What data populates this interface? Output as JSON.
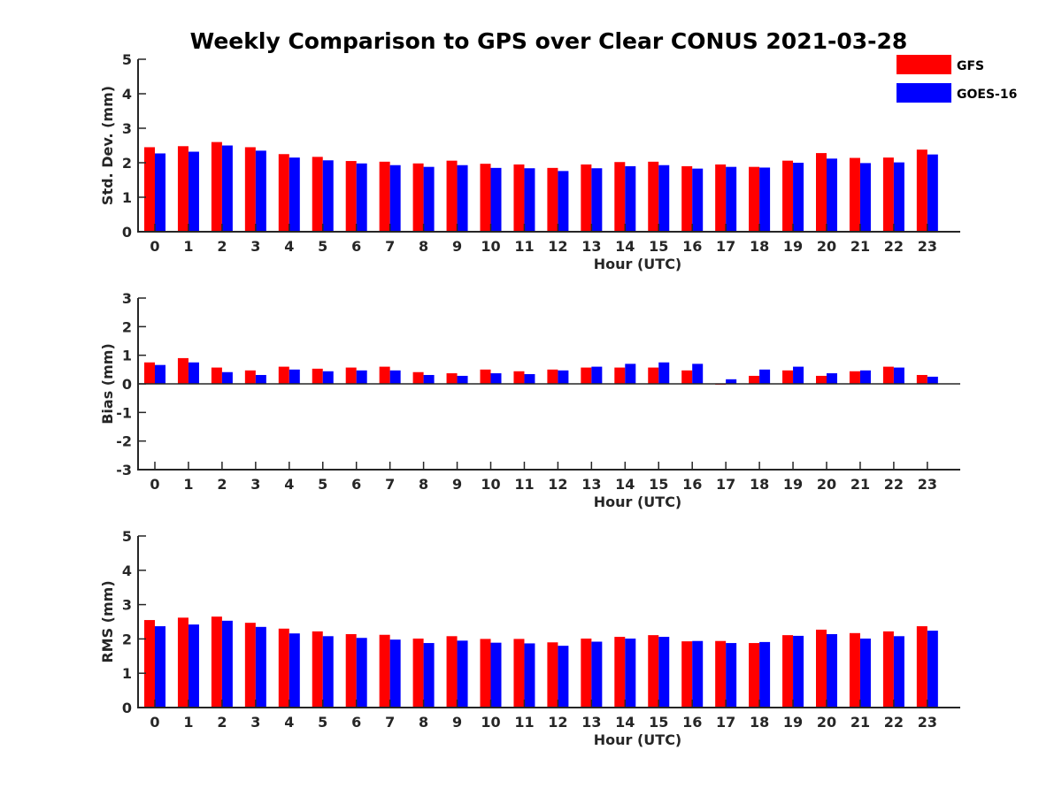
{
  "figure": {
    "title": "Weekly Comparison to GPS over Clear CONUS 2021-03-28"
  },
  "legend": {
    "placement": "top-right",
    "entries": [
      {
        "name": "GFS",
        "color": "#ff0000"
      },
      {
        "name": "GOES-16",
        "color": "#0000ff"
      }
    ]
  },
  "chart_data": [
    {
      "type": "bar",
      "xlabel": "Hour (UTC)",
      "ylabel": "Std. Dev. (mm)",
      "ylim": [
        0,
        5
      ],
      "yticks": [
        0,
        1,
        2,
        3,
        4,
        5
      ],
      "categories": [
        "0",
        "1",
        "2",
        "3",
        "4",
        "5",
        "6",
        "7",
        "8",
        "9",
        "10",
        "11",
        "12",
        "13",
        "14",
        "15",
        "16",
        "17",
        "18",
        "19",
        "20",
        "21",
        "22",
        "23"
      ],
      "series": [
        {
          "name": "GFS",
          "color": "#ff0000",
          "values": [
            2.45,
            2.48,
            2.6,
            2.45,
            2.25,
            2.17,
            2.05,
            2.03,
            1.98,
            2.06,
            1.97,
            1.95,
            1.85,
            1.95,
            2.02,
            2.03,
            1.9,
            1.95,
            1.88,
            2.06,
            2.28,
            2.14,
            2.15,
            2.38
          ]
        },
        {
          "name": "GOES-16",
          "color": "#0000ff",
          "values": [
            2.27,
            2.32,
            2.5,
            2.35,
            2.15,
            2.07,
            1.98,
            1.93,
            1.88,
            1.93,
            1.85,
            1.84,
            1.76,
            1.84,
            1.9,
            1.93,
            1.83,
            1.88,
            1.86,
            2.0,
            2.12,
            1.99,
            2.01,
            2.24
          ]
        }
      ]
    },
    {
      "type": "bar",
      "xlabel": "Hour (UTC)",
      "ylabel": "Bias (mm)",
      "ylim": [
        -3,
        3
      ],
      "yticks": [
        -3,
        -2,
        -1,
        0,
        1,
        2,
        3
      ],
      "categories": [
        "0",
        "1",
        "2",
        "3",
        "4",
        "5",
        "6",
        "7",
        "8",
        "9",
        "10",
        "11",
        "12",
        "13",
        "14",
        "15",
        "16",
        "17",
        "18",
        "19",
        "20",
        "21",
        "22",
        "23"
      ],
      "series": [
        {
          "name": "GFS",
          "color": "#ff0000",
          "values": [
            0.75,
            0.9,
            0.57,
            0.47,
            0.6,
            0.53,
            0.57,
            0.6,
            0.41,
            0.37,
            0.5,
            0.44,
            0.5,
            0.57,
            0.57,
            0.57,
            0.47,
            -0.03,
            0.28,
            0.47,
            0.28,
            0.44,
            0.6,
            0.31
          ]
        },
        {
          "name": "GOES-16",
          "color": "#0000ff",
          "values": [
            0.66,
            0.75,
            0.41,
            0.31,
            0.5,
            0.44,
            0.47,
            0.47,
            0.31,
            0.28,
            0.37,
            0.34,
            0.47,
            0.6,
            0.7,
            0.75,
            0.7,
            0.16,
            0.5,
            0.6,
            0.37,
            0.47,
            0.57,
            0.25
          ]
        }
      ]
    },
    {
      "type": "bar",
      "xlabel": "Hour (UTC)",
      "ylabel": "RMS (mm)",
      "ylim": [
        0,
        5
      ],
      "yticks": [
        0,
        1,
        2,
        3,
        4,
        5
      ],
      "categories": [
        "0",
        "1",
        "2",
        "3",
        "4",
        "5",
        "6",
        "7",
        "8",
        "9",
        "10",
        "11",
        "12",
        "13",
        "14",
        "15",
        "16",
        "17",
        "18",
        "19",
        "20",
        "21",
        "22",
        "23"
      ],
      "series": [
        {
          "name": "GFS",
          "color": "#ff0000",
          "values": [
            2.55,
            2.62,
            2.65,
            2.47,
            2.3,
            2.22,
            2.14,
            2.12,
            2.01,
            2.08,
            2.0,
            2.0,
            1.9,
            2.01,
            2.06,
            2.11,
            1.93,
            1.94,
            1.88,
            2.11,
            2.27,
            2.17,
            2.22,
            2.37
          ]
        },
        {
          "name": "GOES-16",
          "color": "#0000ff",
          "values": [
            2.37,
            2.42,
            2.53,
            2.35,
            2.16,
            2.08,
            2.03,
            1.98,
            1.88,
            1.95,
            1.89,
            1.87,
            1.8,
            1.92,
            2.01,
            2.06,
            1.94,
            1.88,
            1.91,
            2.09,
            2.14,
            2.01,
            2.08,
            2.24
          ]
        }
      ]
    }
  ]
}
